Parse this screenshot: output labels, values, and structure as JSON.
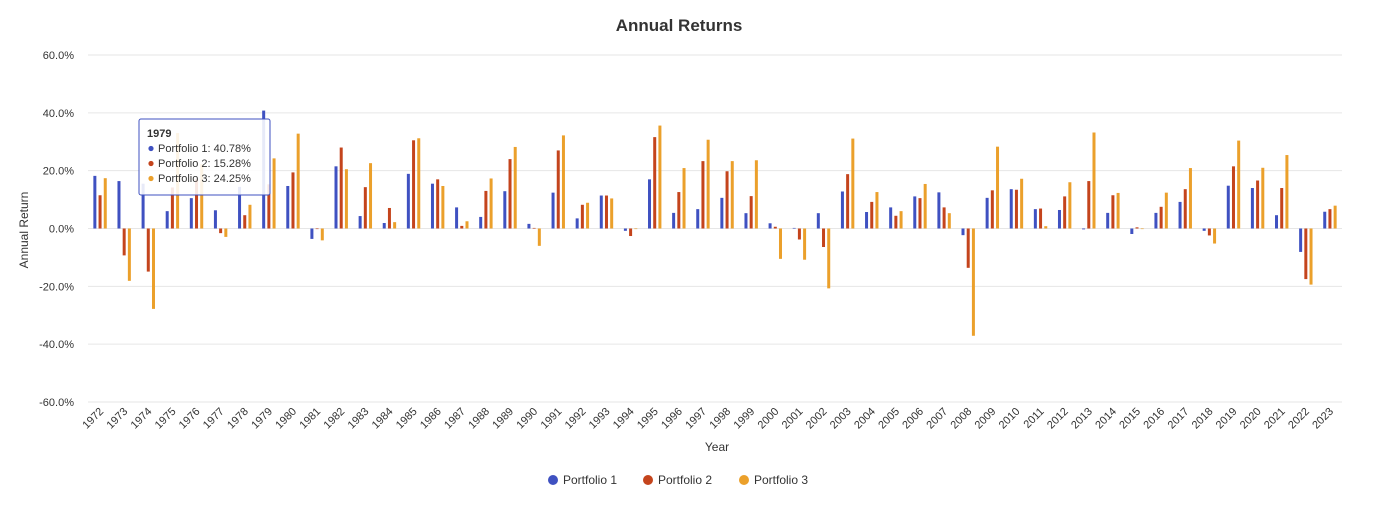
{
  "chart_data": {
    "type": "bar",
    "title": "Annual Returns",
    "xlabel": "Year",
    "ylabel": "Annual Return",
    "ylim": [
      -60,
      60
    ],
    "yticks": [
      60,
      40,
      20,
      0,
      -20,
      -40,
      -60
    ],
    "ytick_labels": [
      "60.0%",
      "40.0%",
      "20.0%",
      "0.0%",
      "-20.0%",
      "-40.0%",
      "-60.0%"
    ],
    "grid": true,
    "legend_position": "bottom",
    "categories": [
      "1972",
      "1973",
      "1974",
      "1975",
      "1976",
      "1977",
      "1978",
      "1979",
      "1980",
      "1981",
      "1982",
      "1983",
      "1984",
      "1985",
      "1986",
      "1987",
      "1988",
      "1989",
      "1990",
      "1991",
      "1992",
      "1993",
      "1994",
      "1995",
      "1996",
      "1997",
      "1998",
      "1999",
      "2000",
      "2001",
      "2002",
      "2003",
      "2004",
      "2005",
      "2006",
      "2007",
      "2008",
      "2009",
      "2010",
      "2011",
      "2012",
      "2013",
      "2014",
      "2015",
      "2016",
      "2017",
      "2018",
      "2019",
      "2020",
      "2021",
      "2022",
      "2023"
    ],
    "series": [
      {
        "name": "Portfolio 1",
        "color": "#3f51c1",
        "values": [
          18.2,
          16.4,
          15.5,
          6.0,
          10.5,
          6.3,
          14.4,
          40.78,
          14.7,
          -3.6,
          21.5,
          4.3,
          1.9,
          18.9,
          15.5,
          7.3,
          4.0,
          12.9,
          1.6,
          12.4,
          3.5,
          11.4,
          -0.8,
          17.0,
          5.4,
          6.7,
          10.6,
          5.3,
          1.8,
          0.2,
          5.3,
          12.8,
          5.7,
          7.3,
          11.1,
          12.5,
          -2.3,
          10.6,
          13.6,
          6.7,
          6.4,
          -0.3,
          5.4,
          -1.9,
          5.4,
          9.2,
          -0.8,
          14.8,
          14.0,
          4.6,
          -8.1,
          5.8
        ]
      },
      {
        "name": "Portfolio 2",
        "color": "#c4441c",
        "values": [
          11.5,
          -9.3,
          -14.9,
          14.2,
          17.0,
          -1.6,
          4.6,
          15.28,
          19.4,
          -0.2,
          28.0,
          14.3,
          7.1,
          30.5,
          17.0,
          0.9,
          13.0,
          24.0,
          0.2,
          27.0,
          8.2,
          11.4,
          -2.6,
          31.6,
          12.6,
          23.3,
          19.8,
          11.2,
          0.6,
          -3.8,
          -6.4,
          18.8,
          9.2,
          4.4,
          10.5,
          7.3,
          -13.6,
          13.2,
          13.4,
          6.9,
          11.1,
          16.4,
          11.5,
          0.4,
          7.5,
          13.6,
          -2.4,
          21.5,
          16.6,
          14.0,
          -17.5,
          6.7
        ]
      },
      {
        "name": "Portfolio 3",
        "color": "#eba02b",
        "values": [
          17.4,
          -18.1,
          -27.8,
          33.0,
          22.2,
          -2.9,
          8.2,
          24.25,
          32.8,
          -4.1,
          20.5,
          22.6,
          2.2,
          31.2,
          14.7,
          2.5,
          17.3,
          28.2,
          -6.0,
          32.2,
          8.9,
          10.4,
          0.0,
          35.6,
          20.9,
          30.7,
          23.3,
          23.6,
          -10.5,
          -10.8,
          -20.7,
          31.1,
          12.6,
          6.0,
          15.4,
          5.3,
          -37.1,
          28.3,
          17.2,
          0.8,
          16.0,
          33.2,
          12.3,
          0.0,
          12.4,
          20.9,
          -5.2,
          30.4,
          21.0,
          25.4,
          -19.4,
          7.9
        ]
      }
    ],
    "tooltip": {
      "year": "1979",
      "lines": [
        "Portfolio 1: 40.78%",
        "Portfolio 2: 15.28%",
        "Portfolio 3: 24.25%"
      ]
    }
  }
}
